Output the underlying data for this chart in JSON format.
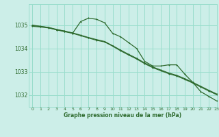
{
  "title": "Graphe pression niveau de la mer (hPa)",
  "background_color": "#cceee8",
  "grid_color": "#99ddcc",
  "line_color": "#2d6a2d",
  "xlim": [
    -0.5,
    23
  ],
  "ylim": [
    1031.5,
    1035.9
  ],
  "yticks": [
    1032,
    1033,
    1034,
    1035
  ],
  "xticks": [
    0,
    1,
    2,
    3,
    4,
    5,
    6,
    7,
    8,
    9,
    10,
    11,
    12,
    13,
    14,
    15,
    16,
    17,
    18,
    19,
    20,
    21,
    22,
    23
  ],
  "series1": [
    1035.0,
    1034.95,
    1034.9,
    1034.8,
    1034.75,
    1034.65,
    1035.15,
    1035.3,
    1035.25,
    1035.1,
    1034.65,
    1034.5,
    1034.25,
    1034.0,
    1033.45,
    1033.25,
    1033.25,
    1033.3,
    1033.3,
    1032.9,
    1032.55,
    1032.15,
    1031.95,
    1031.75
  ],
  "series2": [
    1034.95,
    1034.92,
    1034.88,
    1034.8,
    1034.72,
    1034.65,
    1034.55,
    1034.45,
    1034.35,
    1034.28,
    1034.1,
    1033.9,
    1033.72,
    1033.55,
    1033.35,
    1033.18,
    1033.05,
    1032.92,
    1032.82,
    1032.68,
    1032.52,
    1032.35,
    1032.18,
    1032.02
  ],
  "series3": [
    1034.98,
    1034.94,
    1034.9,
    1034.82,
    1034.74,
    1034.67,
    1034.57,
    1034.47,
    1034.38,
    1034.3,
    1034.12,
    1033.93,
    1033.75,
    1033.58,
    1033.38,
    1033.21,
    1033.08,
    1032.95,
    1032.85,
    1032.71,
    1032.55,
    1032.38,
    1032.21,
    1032.05
  ]
}
